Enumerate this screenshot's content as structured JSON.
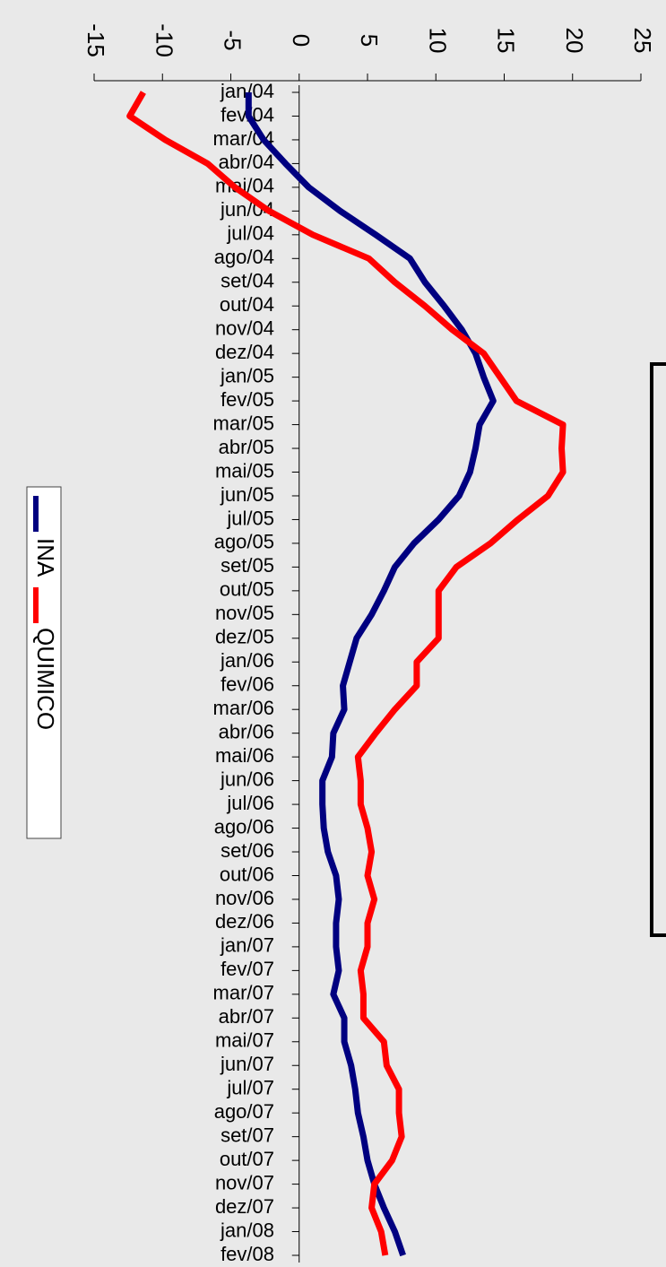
{
  "chart_data": {
    "type": "line",
    "categories": [
      "jan/04",
      "fev/04",
      "mar/04",
      "abr/04",
      "mai/04",
      "jun/04",
      "jul/04",
      "ago/04",
      "set/04",
      "out/04",
      "nov/04",
      "dez/04",
      "jan/05",
      "fev/05",
      "mar/05",
      "abr/05",
      "mai/05",
      "jun/05",
      "jul/05",
      "ago/05",
      "set/05",
      "out/05",
      "nov/05",
      "dez/05",
      "jan/06",
      "fev/06",
      "mar/06",
      "abr/06",
      "mai/06",
      "jun/06",
      "jul/06",
      "ago/06",
      "set/06",
      "out/06",
      "nov/06",
      "dez/06",
      "jan/07",
      "fev/07",
      "mar/07",
      "abr/07",
      "mai/07",
      "jun/07",
      "jul/07",
      "ago/07",
      "set/07",
      "out/07",
      "nov/07",
      "dez/07",
      "jan/08",
      "fev/08"
    ],
    "series": [
      {
        "name": "INA",
        "color": "#000080",
        "values": [
          -3.7,
          -3.7,
          -2.6,
          -1.0,
          0.7,
          3.0,
          5.6,
          8.1,
          9.2,
          10.6,
          11.9,
          12.9,
          13.5,
          14.2,
          13.2,
          12.9,
          12.5,
          11.7,
          10.2,
          8.4,
          7.0,
          6.2,
          5.3,
          4.2,
          3.7,
          3.2,
          3.3,
          2.5,
          2.4,
          1.7,
          1.7,
          1.8,
          2.1,
          2.7,
          2.9,
          2.7,
          2.7,
          2.9,
          2.5,
          3.3,
          3.3,
          3.8,
          4.1,
          4.3,
          4.7,
          5.0,
          5.5,
          6.2,
          7.0,
          7.6
        ]
      },
      {
        "name": "QUIMICO",
        "color": "#ff0000",
        "values": [
          -11.4,
          -12.4,
          -9.8,
          -6.7,
          -4.7,
          -2.2,
          1.0,
          5.1,
          7.0,
          9.2,
          11.2,
          13.5,
          14.7,
          15.9,
          19.3,
          19.2,
          19.3,
          18.2,
          16.0,
          14.0,
          11.5,
          10.2,
          10.2,
          10.2,
          8.6,
          8.6,
          7.0,
          5.6,
          4.3,
          4.5,
          4.5,
          5.0,
          5.3,
          5.0,
          5.5,
          5.0,
          5.0,
          4.5,
          4.7,
          4.7,
          6.2,
          6.4,
          7.3,
          7.3,
          7.5,
          6.8,
          5.5,
          5.3,
          6.0,
          6.3
        ]
      }
    ],
    "ylim": [
      -15,
      25
    ],
    "yticks": [
      -15,
      -10,
      -5,
      0,
      5,
      10,
      15,
      20,
      25
    ]
  }
}
